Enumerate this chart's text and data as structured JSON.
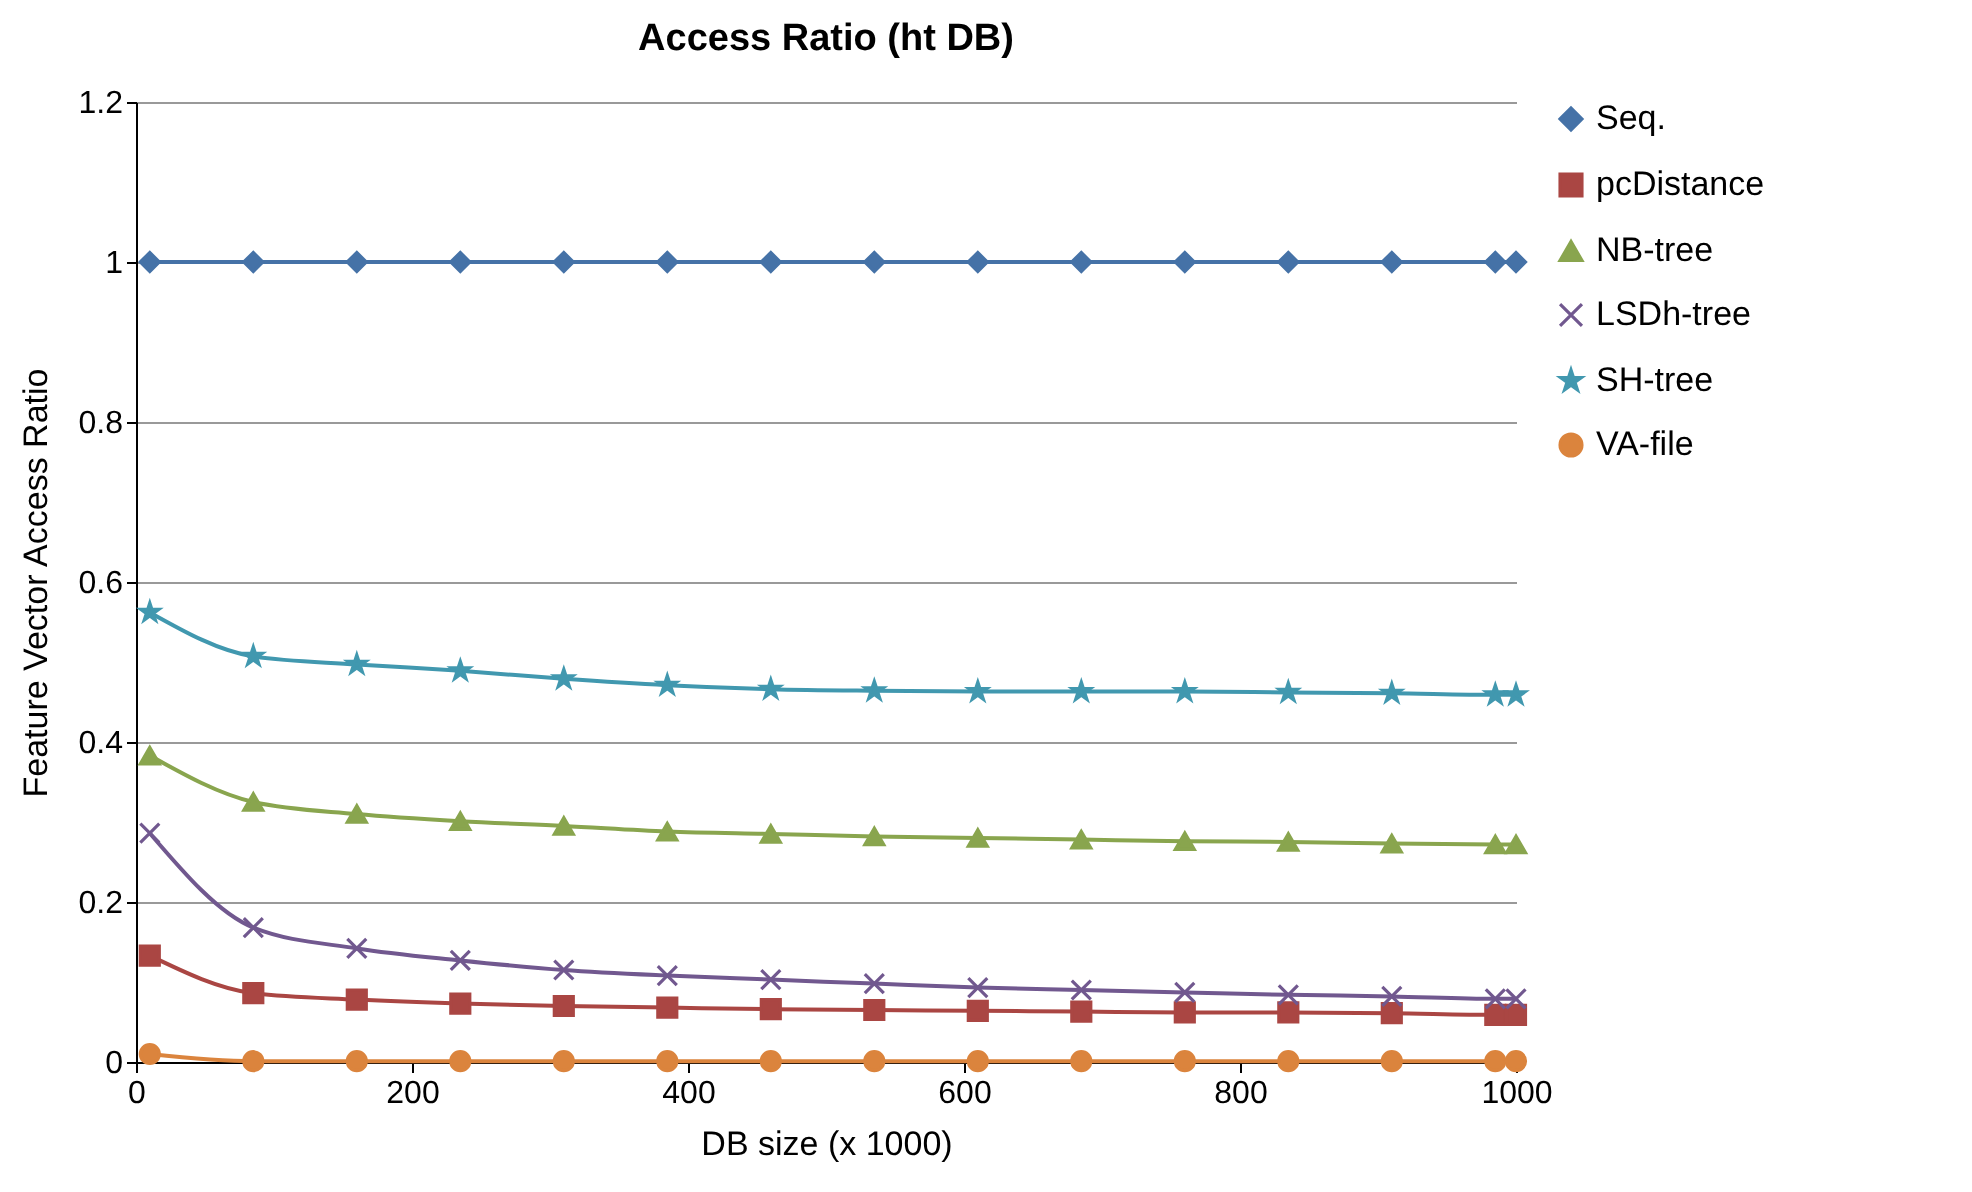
{
  "chart_data": {
    "type": "line",
    "title": "Access Ratio (ht DB)",
    "xlabel": "DB size (x 1000)",
    "ylabel": "Feature Vector Access Ratio",
    "x": [
      10,
      85,
      160,
      235,
      310,
      385,
      460,
      535,
      610,
      685,
      760,
      835,
      910,
      985,
      1000
    ],
    "series": [
      {
        "name": "Seq.",
        "color": "#4572a7",
        "marker": "diamond",
        "values": [
          1,
          1,
          1,
          1,
          1,
          1,
          1,
          1,
          1,
          1,
          1,
          1,
          1,
          1,
          1
        ]
      },
      {
        "name": "pcDistance",
        "color": "#aa4643",
        "marker": "square",
        "values": [
          0.133,
          0.086,
          0.078,
          0.073,
          0.07,
          0.068,
          0.066,
          0.065,
          0.064,
          0.063,
          0.062,
          0.062,
          0.061,
          0.059,
          0.059
        ]
      },
      {
        "name": "NB-tree",
        "color": "#89a54e",
        "marker": "triangle",
        "values": [
          0.383,
          0.325,
          0.31,
          0.301,
          0.295,
          0.288,
          0.285,
          0.282,
          0.28,
          0.278,
          0.276,
          0.275,
          0.273,
          0.272,
          0.272
        ]
      },
      {
        "name": "LSDh-tree",
        "color": "#71588f",
        "marker": "cross",
        "values": [
          0.286,
          0.168,
          0.142,
          0.127,
          0.115,
          0.108,
          0.103,
          0.098,
          0.093,
          0.09,
          0.087,
          0.084,
          0.082,
          0.079,
          0.079
        ]
      },
      {
        "name": "SH-tree",
        "color": "#4198af",
        "marker": "star",
        "values": [
          0.562,
          0.507,
          0.497,
          0.489,
          0.479,
          0.471,
          0.466,
          0.464,
          0.463,
          0.463,
          0.463,
          0.462,
          0.461,
          0.459,
          0.459
        ]
      },
      {
        "name": "VA-file",
        "color": "#db843d",
        "marker": "circle",
        "values": [
          0.01,
          0.001,
          0.001,
          0.001,
          0.001,
          0.001,
          0.001,
          0.001,
          0.001,
          0.001,
          0.001,
          0.001,
          0.001,
          0.001,
          0.001
        ]
      }
    ],
    "xlim": [
      0,
      1000
    ],
    "xticks": [
      0,
      200,
      400,
      600,
      800,
      1000
    ],
    "ylim": [
      0,
      1.2
    ],
    "yticks": [
      0,
      0.2,
      0.4,
      0.6,
      0.8,
      1,
      1.2
    ],
    "grid": "y",
    "legend": "right",
    "line_style": "solid"
  }
}
